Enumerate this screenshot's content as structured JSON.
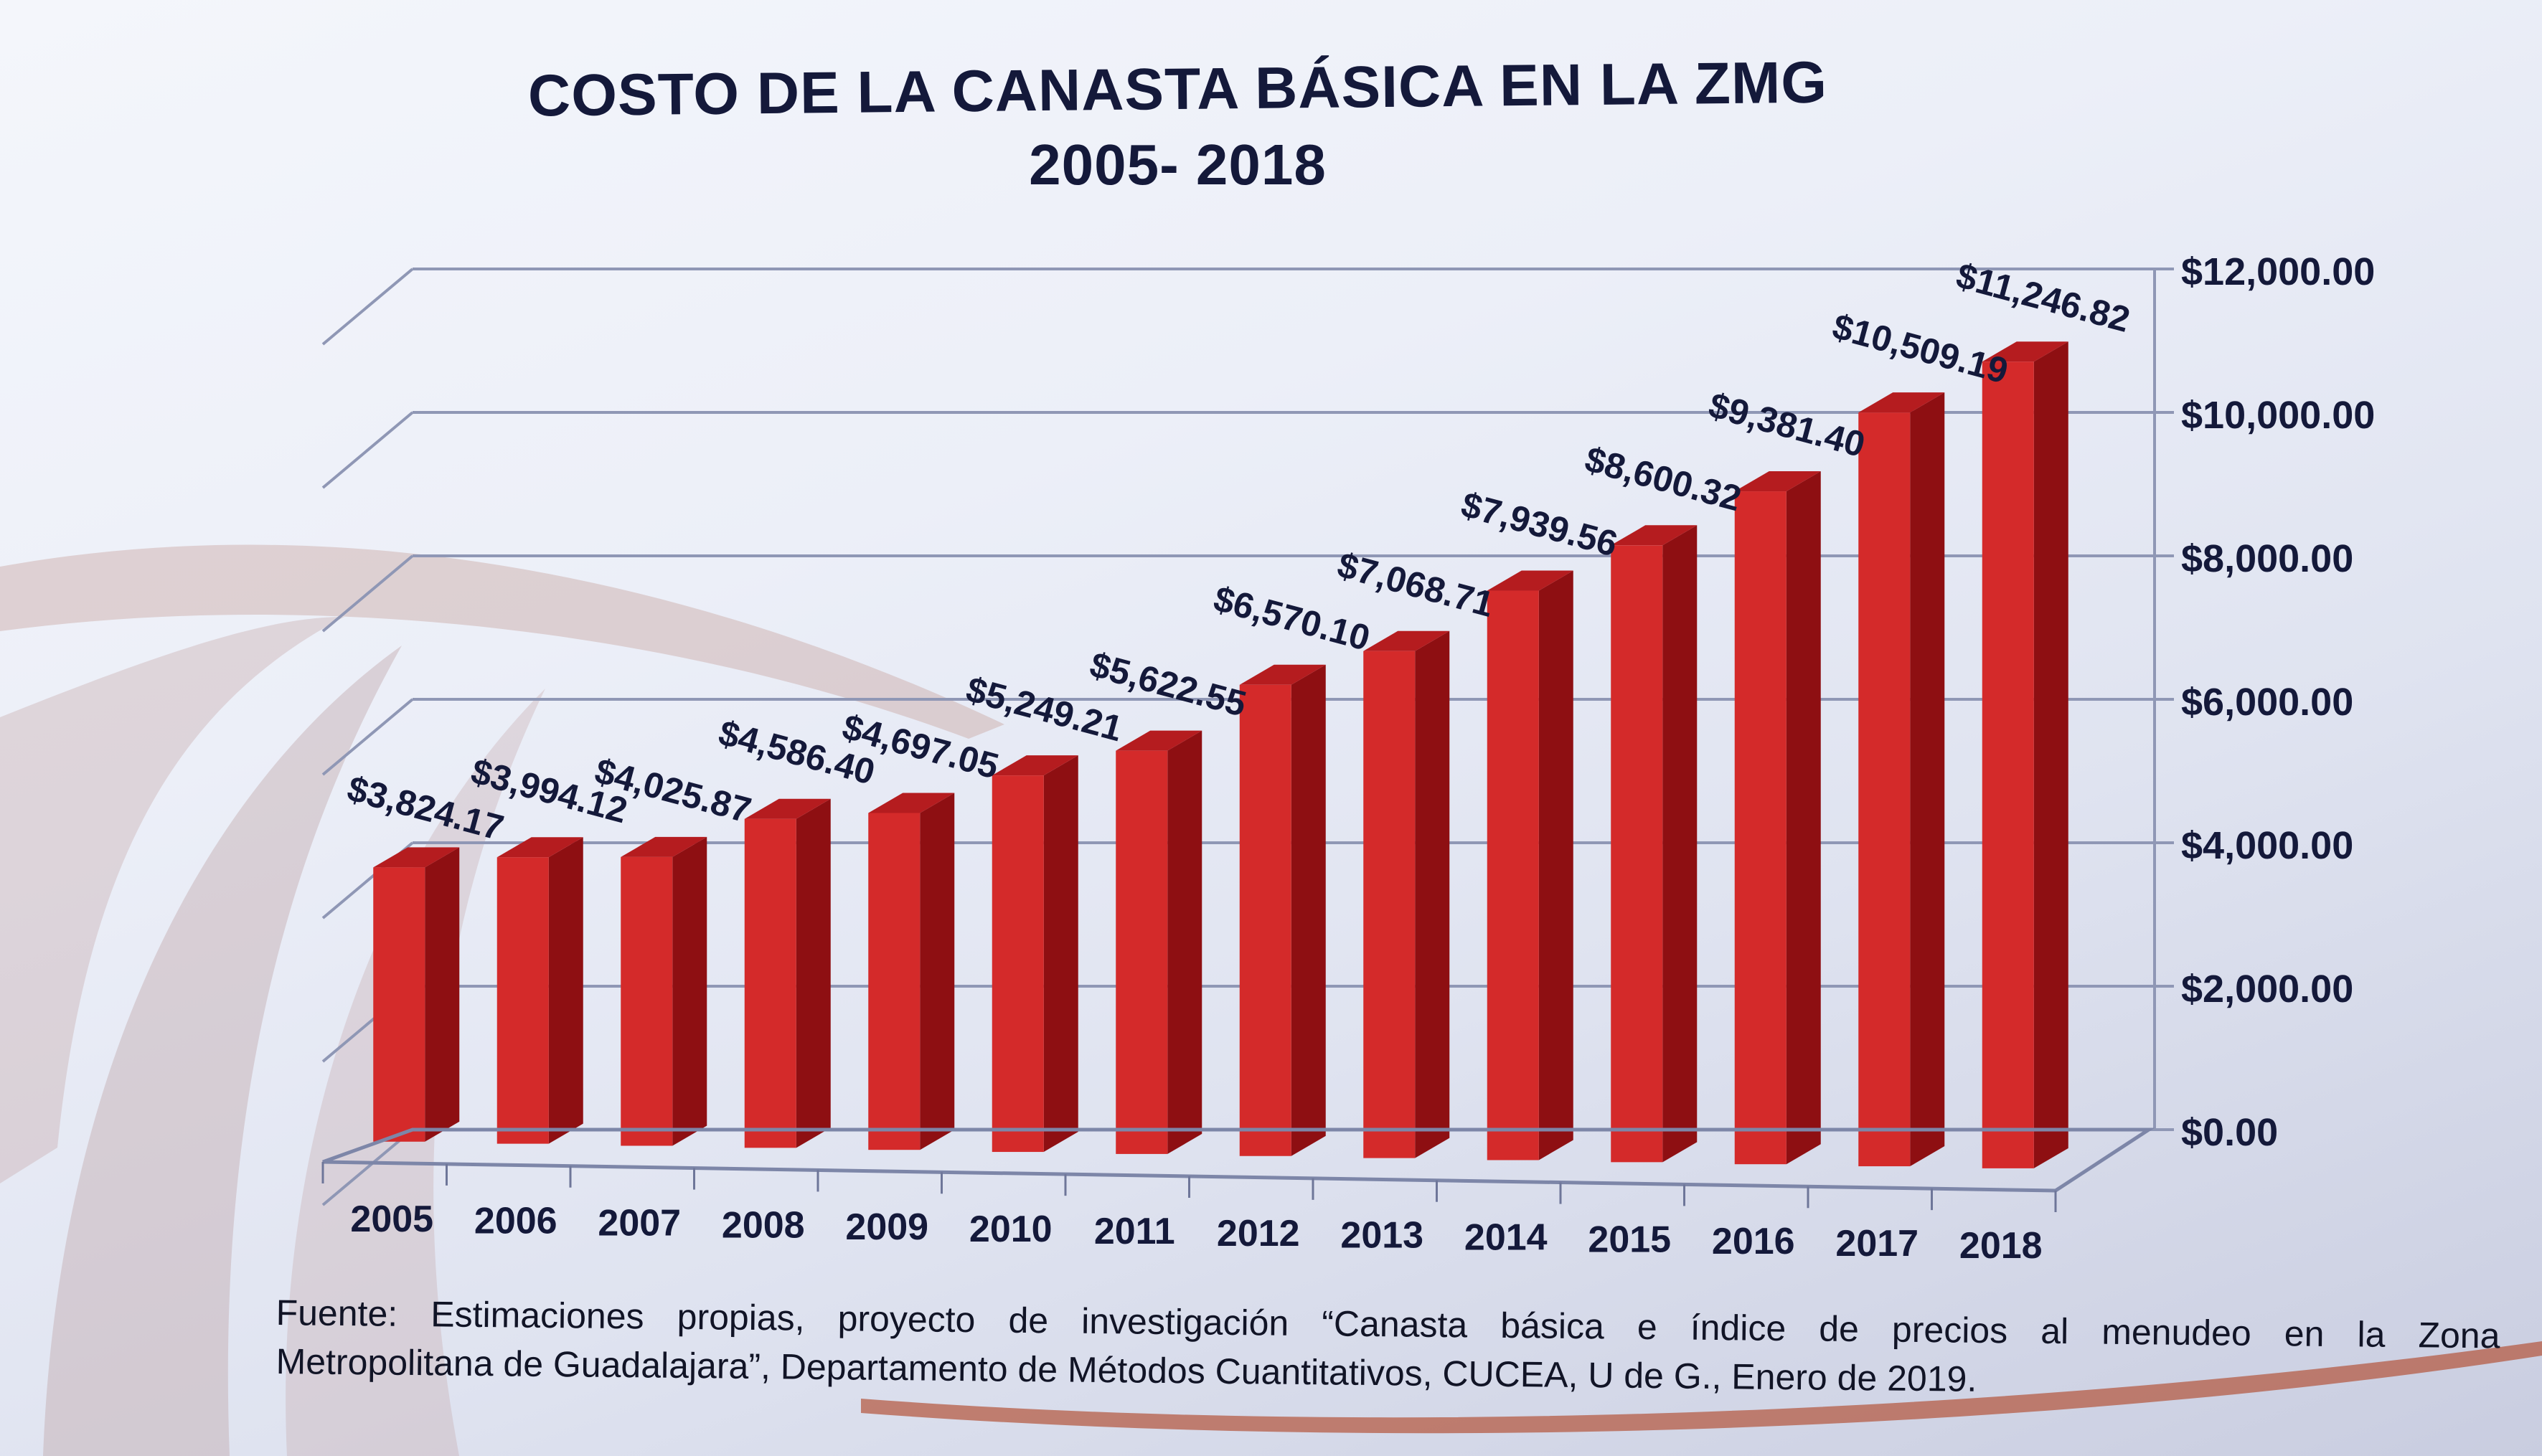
{
  "slide": {
    "title_line1": "COSTO DE LA CANASTA BÁSICA EN LA ZMG",
    "title_line2": "2005- 2018",
    "source_line1": "Fuente: Estimaciones propias, proyecto de investigación “Canasta básica e índice de precios al menudeo en la Zona",
    "source_line2": "Metropolitana de Guadalajara”, Departamento de Métodos Cuantitativos, CUCEA, U de G., Enero de 2019."
  },
  "colors": {
    "bar_front": "#d42a2a",
    "bar_side": "#8e0f12",
    "bar_top": "#b51c1f",
    "text": "#14193a",
    "grid": "#8f97b5"
  },
  "chart_data": {
    "type": "bar",
    "style": "3d-column",
    "title": "COSTO DE LA CANASTA BÁSICA EN LA ZMG 2005- 2018",
    "xlabel": "",
    "ylabel": "",
    "categories": [
      "2005",
      "2006",
      "2007",
      "2008",
      "2009",
      "2010",
      "2011",
      "2012",
      "2013",
      "2014",
      "2015",
      "2016",
      "2017",
      "2018"
    ],
    "values": [
      3824.17,
      3994.12,
      4025.87,
      4586.4,
      4697.05,
      5249.21,
      5622.55,
      6570.1,
      7068.71,
      7939.56,
      8600.32,
      9381.4,
      10509.19,
      11246.82
    ],
    "data_labels": [
      "$3,824.17",
      "$3,994.12",
      "$4,025.87",
      "$4,586.40",
      "$4,697.05",
      "$5,249.21",
      "$5,622.55",
      "$6,570.10",
      "$7,068.71",
      "$7,939.56",
      "$8,600.32",
      "$9,381.40",
      "$10,509.19",
      "$11,246.82"
    ],
    "y_ticks": [
      0,
      2000,
      4000,
      6000,
      8000,
      10000,
      12000
    ],
    "y_tick_labels": [
      "$0.00",
      "$2,000.00",
      "$4,000.00",
      "$6,000.00",
      "$8,000.00",
      "$10,000.00",
      "$12,000.00"
    ],
    "ylim": [
      0,
      12000
    ],
    "y_axis_side": "right",
    "grid": true,
    "legend": "none"
  }
}
